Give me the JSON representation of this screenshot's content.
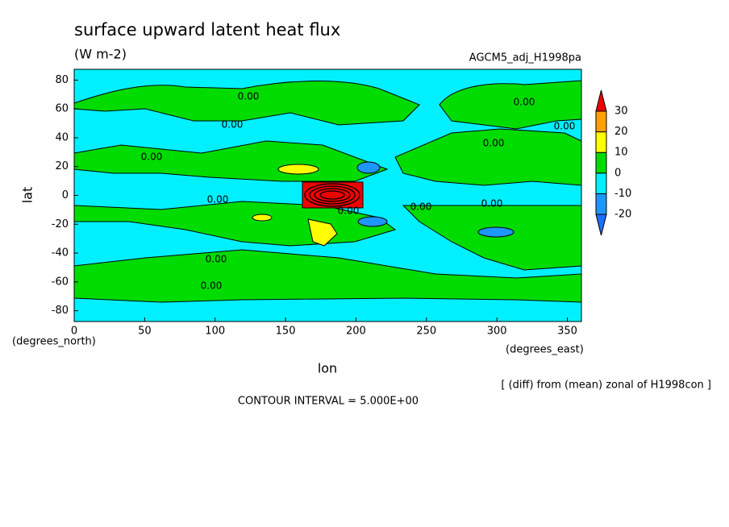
{
  "chart_data": {
    "type": "contour",
    "title": "surface upward latent heat flux",
    "subtitle": "(W m-2)",
    "annotation": "AGCM5_adj_H1998pa",
    "x_label": "lon",
    "y_label": "lat",
    "x_unit": "(degrees_east)",
    "y_unit": "(degrees_north)",
    "footnote": "[ (diff) from (mean) zonal of H1998con ]",
    "contour_interval": "CONTOUR INTERVAL = 5.000E+00",
    "contour_label": "0.00",
    "xlim": [
      0,
      360
    ],
    "ylim": [
      -87.5,
      87.5
    ],
    "xticks": [
      0,
      50,
      100,
      150,
      200,
      250,
      300,
      350
    ],
    "yticks": [
      -80,
      -60,
      -40,
      -20,
      0,
      20,
      40,
      60,
      80
    ],
    "colorbar": {
      "levels": [
        -20,
        -10,
        0,
        10,
        20,
        30
      ],
      "colors": [
        "#1e6eff",
        "#1e96ff",
        "#00f0ff",
        "#00dc00",
        "#ffff00",
        "#ffa000",
        "#f00000"
      ]
    }
  }
}
